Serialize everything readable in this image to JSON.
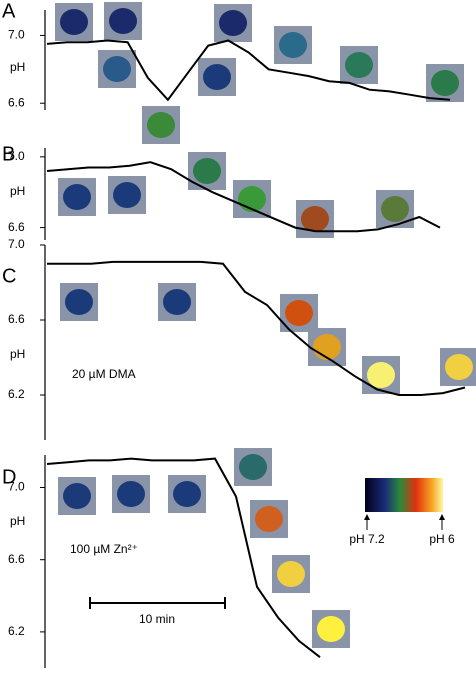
{
  "chart_data": [
    {
      "type": "line",
      "label": "A",
      "ylabel": "pH",
      "color": "#000000",
      "values": [
        6.95,
        6.96,
        6.96,
        6.97,
        6.96,
        6.75,
        6.62,
        6.78,
        6.94,
        6.97,
        6.9,
        6.8,
        6.78,
        6.76,
        6.73,
        6.72,
        6.68,
        6.67,
        6.65,
        6.63,
        6.62
      ],
      "ylim": [
        6.56,
        7.15
      ],
      "yticks": [
        {
          "value": 7.0,
          "label": "7.0"
        },
        6.6
      ]
    },
    {
      "type": "line",
      "label": "B",
      "ylabel": "pH",
      "color": "#000000",
      "values": [
        6.92,
        6.93,
        6.94,
        6.94,
        6.95,
        6.97,
        6.93,
        6.86,
        6.8,
        6.75,
        6.7,
        6.65,
        6.6,
        6.58,
        6.58,
        6.58,
        6.59,
        6.62,
        6.66,
        6.6
      ],
      "ylim": [
        6.53,
        7.05
      ],
      "yticks": [
        {
          "value": 7.0,
          "label": "7.0"
        },
        6.6
      ]
    },
    {
      "type": "line",
      "label": "C",
      "ylabel": "pH",
      "color": "#000000",
      "annotation": "20 µM DMA",
      "values": [
        6.9,
        6.9,
        6.9,
        6.91,
        6.91,
        6.91,
        6.91,
        6.91,
        6.9,
        6.75,
        6.68,
        6.55,
        6.45,
        6.38,
        6.3,
        6.23,
        6.2,
        6.2,
        6.21,
        6.24
      ],
      "ylim": [
        5.96,
        7.0
      ],
      "yticks": [
        {
          "value": 7.0,
          "label": "7.0"
        },
        6.6,
        6.2
      ]
    },
    {
      "type": "line",
      "label": "D",
      "ylabel": "pH",
      "color": "#000000",
      "annotation": "100 µM Zn²⁺",
      "scale_bar": "10 min",
      "values": [
        7.13,
        7.14,
        7.15,
        7.15,
        7.16,
        7.15,
        7.15,
        7.15,
        7.16,
        6.95,
        6.45,
        6.28,
        6.15,
        6.06
      ],
      "ylim": [
        6.0,
        7.18
      ],
      "yticks": [
        {
          "value": 7.0,
          "label": "7.0"
        },
        6.6,
        6.2
      ],
      "colorbar": {
        "left_label": "pH 7.2",
        "right_label": "pH 6"
      }
    }
  ]
}
